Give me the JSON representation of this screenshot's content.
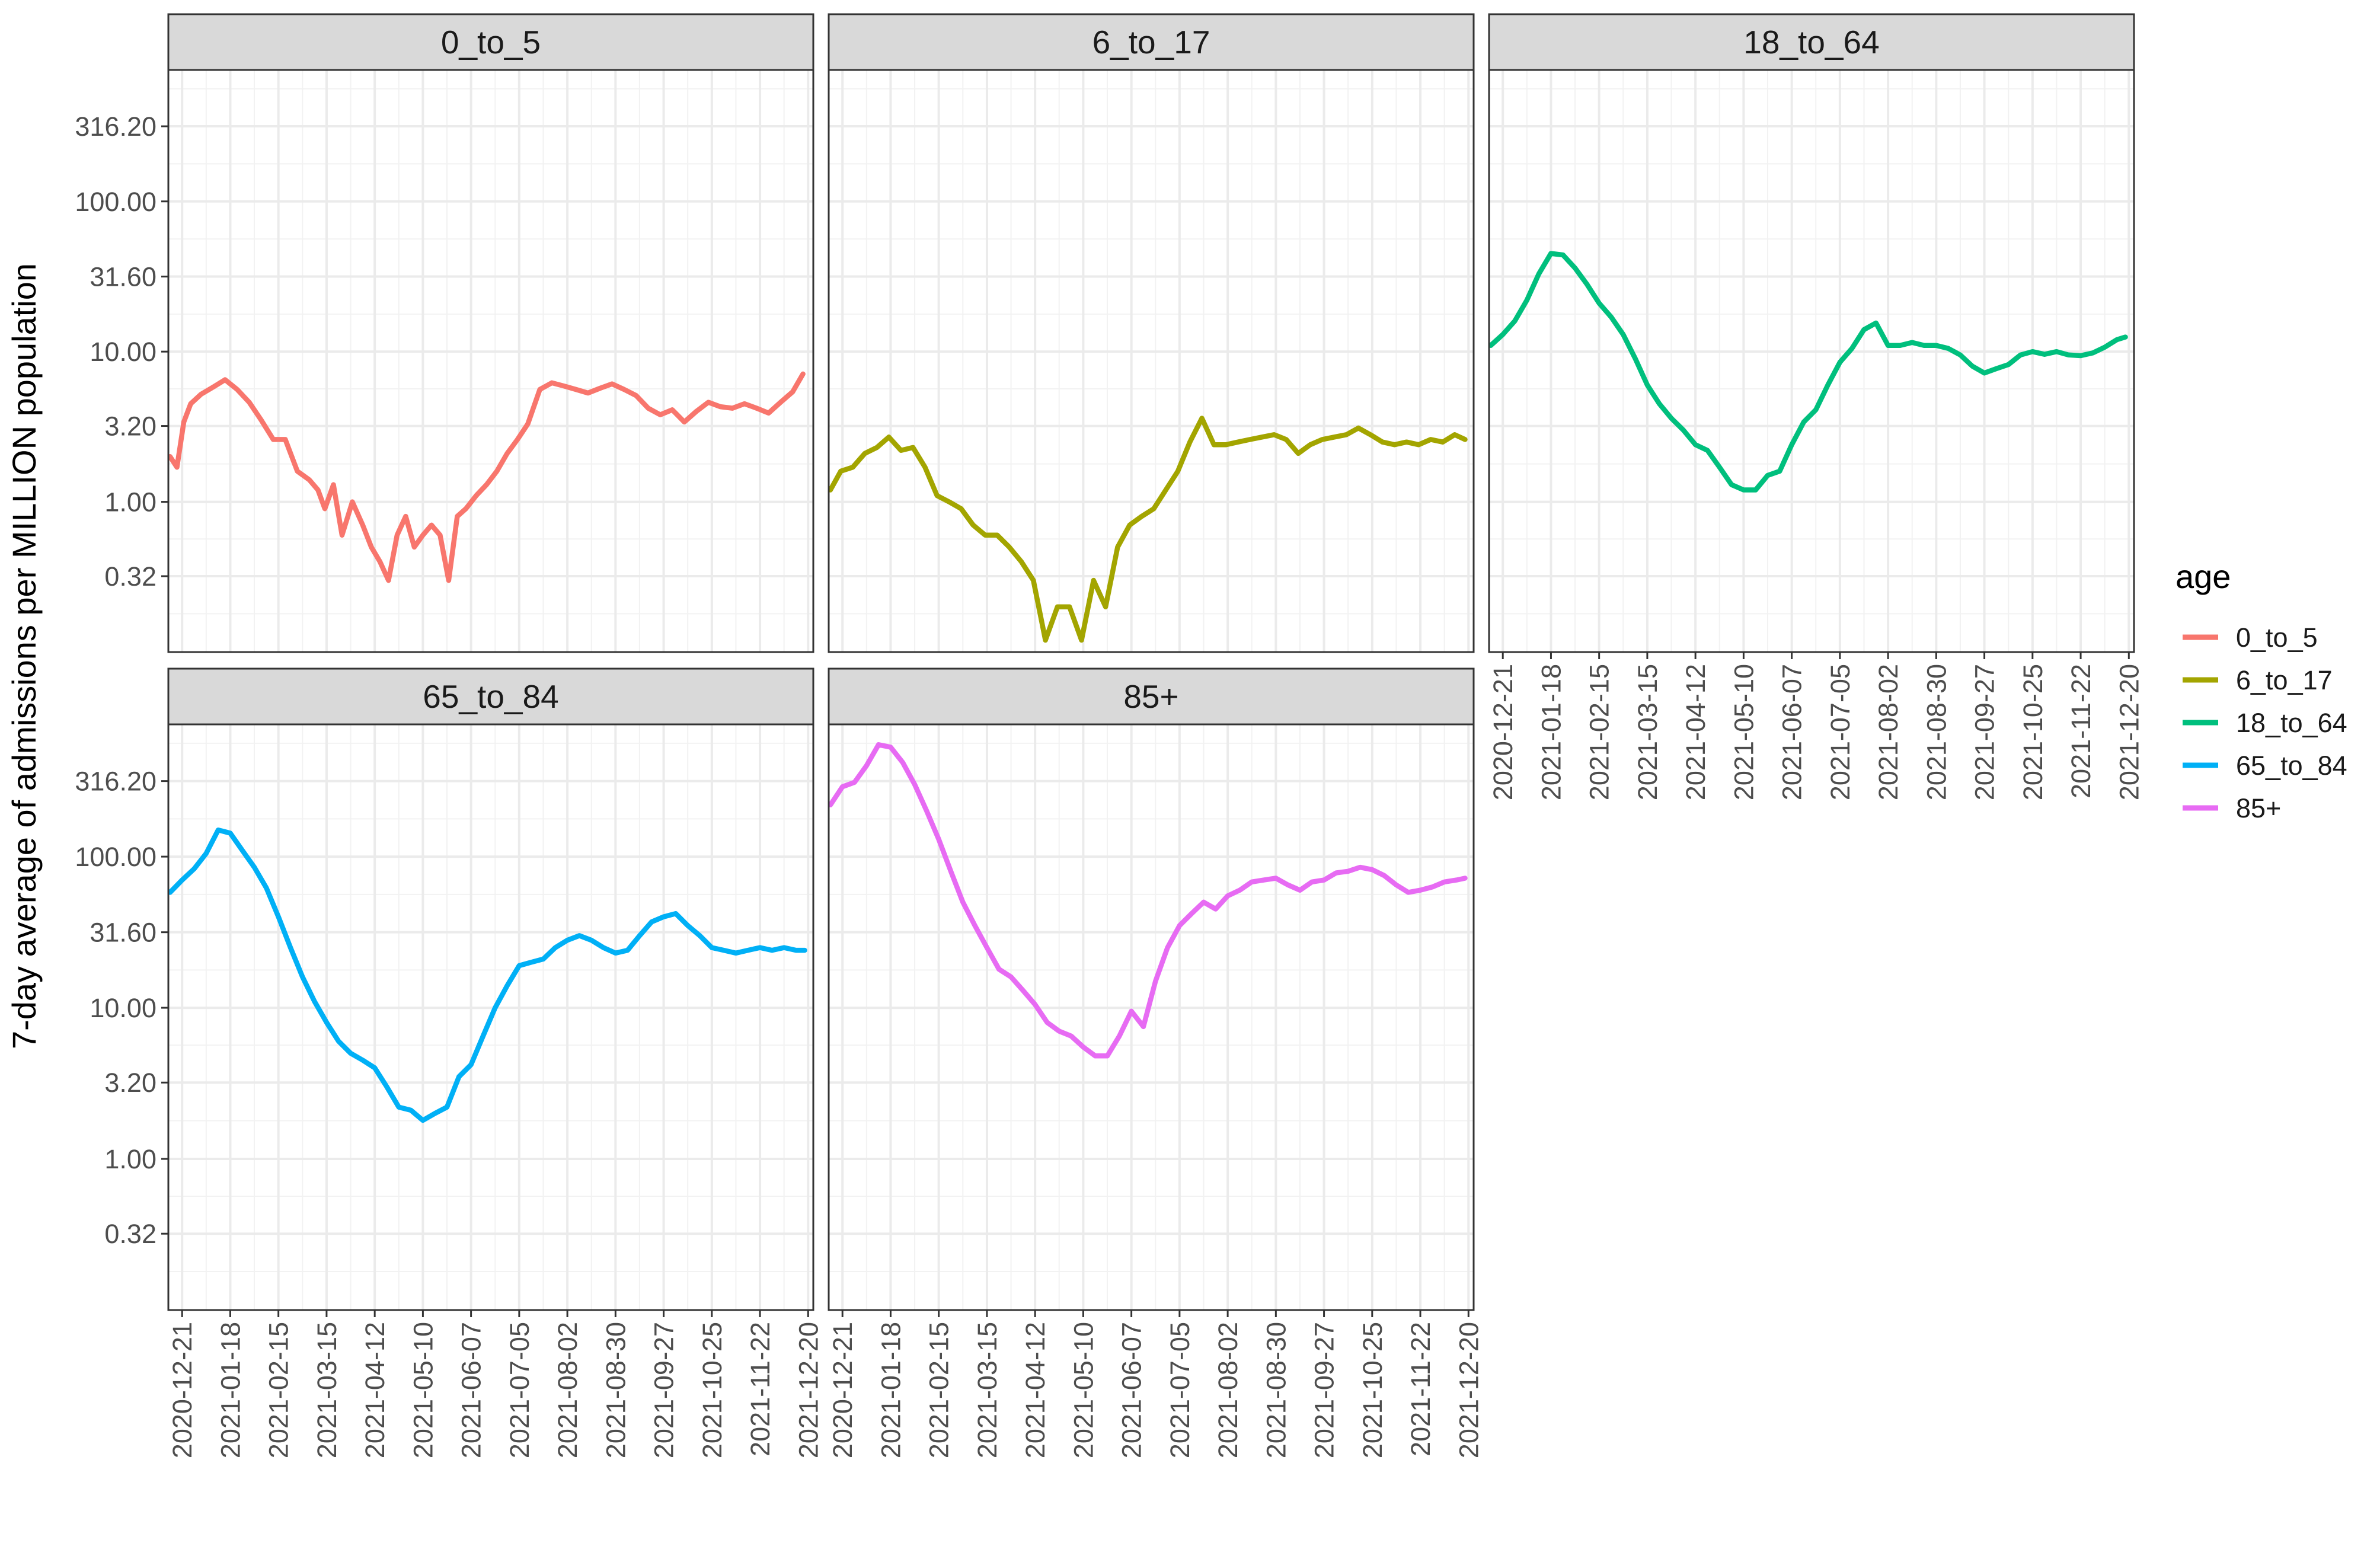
{
  "chart_data": {
    "type": "line",
    "facet_by": "age",
    "ylabel": "7-day average of admissions per MILLION population",
    "xlabel": "",
    "y_scale": "log10",
    "y_ticks": [
      "0.32",
      "1.00",
      "3.20",
      "10.00",
      "31.60",
      "100.00",
      "316.20"
    ],
    "y_tick_values": [
      0.32,
      1.0,
      3.2,
      10.0,
      31.6,
      100.0,
      316.2
    ],
    "ylim": [
      0.1,
      750
    ],
    "x_ticks": [
      "2020-12-21",
      "2021-01-18",
      "2021-02-15",
      "2021-03-15",
      "2021-04-12",
      "2021-05-10",
      "2021-06-07",
      "2021-07-05",
      "2021-08-02",
      "2021-08-30",
      "2021-09-27",
      "2021-10-25",
      "2021-11-22",
      "2021-12-20"
    ],
    "xlim": [
      "2020-12-13",
      "2021-12-23"
    ],
    "grid": true,
    "legend": {
      "title": "age",
      "placement": "right"
    },
    "series": [
      {
        "name": "0_to_5",
        "color": "#F8766D",
        "x": [
          "2020-12-14",
          "2020-12-18",
          "2020-12-22",
          "2020-12-26",
          "2021-01-01",
          "2021-01-08",
          "2021-01-15",
          "2021-01-22",
          "2021-01-29",
          "2021-02-05",
          "2021-02-12",
          "2021-02-19",
          "2021-02-26",
          "2021-03-05",
          "2021-03-10",
          "2021-03-14",
          "2021-03-19",
          "2021-03-24",
          "2021-03-30",
          "2021-04-05",
          "2021-04-10",
          "2021-04-15",
          "2021-04-20",
          "2021-04-25",
          "2021-04-30",
          "2021-05-05",
          "2021-05-10",
          "2021-05-15",
          "2021-05-20",
          "2021-05-25",
          "2021-05-30",
          "2021-06-04",
          "2021-06-10",
          "2021-06-16",
          "2021-06-22",
          "2021-06-28",
          "2021-07-04",
          "2021-07-10",
          "2021-07-17",
          "2021-07-24",
          "2021-07-31",
          "2021-08-07",
          "2021-08-14",
          "2021-08-21",
          "2021-08-28",
          "2021-09-04",
          "2021-09-11",
          "2021-09-18",
          "2021-09-25",
          "2021-10-02",
          "2021-10-09",
          "2021-10-16",
          "2021-10-23",
          "2021-10-30",
          "2021-11-06",
          "2021-11-13",
          "2021-11-20",
          "2021-11-27",
          "2021-12-04",
          "2021-12-11",
          "2021-12-17"
        ],
        "values": [
          2.0,
          1.7,
          3.4,
          4.5,
          5.2,
          5.8,
          6.5,
          5.6,
          4.6,
          3.5,
          2.6,
          2.6,
          1.6,
          1.4,
          1.2,
          0.9,
          1.3,
          0.6,
          1.0,
          0.7,
          0.5,
          0.4,
          0.3,
          0.6,
          0.8,
          0.5,
          0.6,
          0.7,
          0.6,
          0.3,
          0.8,
          0.9,
          1.1,
          1.3,
          1.6,
          2.1,
          2.6,
          3.3,
          5.6,
          6.2,
          5.9,
          5.6,
          5.3,
          5.7,
          6.1,
          5.6,
          5.1,
          4.2,
          3.8,
          4.1,
          3.4,
          4.0,
          4.6,
          4.3,
          4.2,
          4.5,
          4.2,
          3.9,
          4.6,
          5.4,
          7.1
        ]
      },
      {
        "name": "6_to_17",
        "color": "#A3A500",
        "x": [
          "2020-12-14",
          "2020-12-20",
          "2020-12-27",
          "2021-01-03",
          "2021-01-10",
          "2021-01-17",
          "2021-01-24",
          "2021-01-31",
          "2021-02-07",
          "2021-02-14",
          "2021-02-21",
          "2021-02-28",
          "2021-03-07",
          "2021-03-14",
          "2021-03-21",
          "2021-03-28",
          "2021-04-04",
          "2021-04-11",
          "2021-04-18",
          "2021-04-25",
          "2021-05-02",
          "2021-05-09",
          "2021-05-16",
          "2021-05-23",
          "2021-05-30",
          "2021-06-06",
          "2021-06-13",
          "2021-06-20",
          "2021-06-27",
          "2021-07-04",
          "2021-07-11",
          "2021-07-18",
          "2021-07-25",
          "2021-08-01",
          "2021-08-08",
          "2021-08-15",
          "2021-08-22",
          "2021-08-29",
          "2021-09-05",
          "2021-09-12",
          "2021-09-19",
          "2021-09-26",
          "2021-10-03",
          "2021-10-10",
          "2021-10-17",
          "2021-10-24",
          "2021-10-31",
          "2021-11-07",
          "2021-11-14",
          "2021-11-21",
          "2021-11-28",
          "2021-12-05",
          "2021-12-12",
          "2021-12-18"
        ],
        "values": [
          1.2,
          1.6,
          1.7,
          2.1,
          2.3,
          2.7,
          2.2,
          2.3,
          1.7,
          1.1,
          1.0,
          0.9,
          0.7,
          0.6,
          0.6,
          0.5,
          0.4,
          0.3,
          0.12,
          0.2,
          0.2,
          0.12,
          0.3,
          0.2,
          0.5,
          0.7,
          0.8,
          0.9,
          1.2,
          1.6,
          2.5,
          3.6,
          2.4,
          2.4,
          2.5,
          2.6,
          2.7,
          2.8,
          2.6,
          2.1,
          2.4,
          2.6,
          2.7,
          2.8,
          3.1,
          2.8,
          2.5,
          2.4,
          2.5,
          2.4,
          2.6,
          2.5,
          2.8,
          2.6
        ]
      },
      {
        "name": "18_to_64",
        "color": "#00BF7D",
        "x": [
          "2020-12-14",
          "2020-12-21",
          "2020-12-28",
          "2021-01-04",
          "2021-01-11",
          "2021-01-18",
          "2021-01-25",
          "2021-02-01",
          "2021-02-08",
          "2021-02-15",
          "2021-02-22",
          "2021-03-01",
          "2021-03-08",
          "2021-03-15",
          "2021-03-22",
          "2021-03-29",
          "2021-04-05",
          "2021-04-12",
          "2021-04-19",
          "2021-04-26",
          "2021-05-03",
          "2021-05-10",
          "2021-05-17",
          "2021-05-24",
          "2021-05-31",
          "2021-06-07",
          "2021-06-14",
          "2021-06-21",
          "2021-06-28",
          "2021-07-05",
          "2021-07-12",
          "2021-07-19",
          "2021-07-26",
          "2021-08-02",
          "2021-08-09",
          "2021-08-16",
          "2021-08-23",
          "2021-08-30",
          "2021-09-06",
          "2021-09-13",
          "2021-09-20",
          "2021-09-27",
          "2021-10-04",
          "2021-10-11",
          "2021-10-18",
          "2021-10-25",
          "2021-11-01",
          "2021-11-08",
          "2021-11-15",
          "2021-11-22",
          "2021-11-29",
          "2021-12-06",
          "2021-12-13",
          "2021-12-18"
        ],
        "values": [
          11.0,
          13.0,
          16.0,
          22.0,
          33.0,
          45.0,
          44.0,
          36.0,
          28.0,
          21.0,
          17.0,
          13.0,
          9.0,
          6.0,
          4.5,
          3.6,
          3.0,
          2.4,
          2.2,
          1.7,
          1.3,
          1.2,
          1.2,
          1.5,
          1.6,
          2.4,
          3.4,
          4.1,
          6.0,
          8.5,
          10.5,
          14.0,
          15.5,
          11.0,
          11.0,
          11.5,
          11.0,
          11.0,
          10.5,
          9.5,
          8.0,
          7.2,
          7.7,
          8.2,
          9.5,
          10.0,
          9.6,
          10.0,
          9.5,
          9.4,
          9.8,
          10.7,
          12.0,
          12.5
        ]
      },
      {
        "name": "65_to_84",
        "color": "#00B0F6",
        "x": [
          "2020-12-14",
          "2020-12-21",
          "2020-12-28",
          "2021-01-04",
          "2021-01-11",
          "2021-01-18",
          "2021-01-25",
          "2021-02-01",
          "2021-02-08",
          "2021-02-15",
          "2021-02-22",
          "2021-03-01",
          "2021-03-08",
          "2021-03-15",
          "2021-03-22",
          "2021-03-29",
          "2021-04-05",
          "2021-04-12",
          "2021-04-19",
          "2021-04-26",
          "2021-05-03",
          "2021-05-10",
          "2021-05-17",
          "2021-05-24",
          "2021-05-31",
          "2021-06-07",
          "2021-06-14",
          "2021-06-21",
          "2021-06-28",
          "2021-07-05",
          "2021-07-12",
          "2021-07-19",
          "2021-07-26",
          "2021-08-02",
          "2021-08-09",
          "2021-08-16",
          "2021-08-23",
          "2021-08-30",
          "2021-09-06",
          "2021-09-13",
          "2021-09-20",
          "2021-09-27",
          "2021-10-04",
          "2021-10-11",
          "2021-10-18",
          "2021-10-25",
          "2021-11-01",
          "2021-11-08",
          "2021-11-15",
          "2021-11-22",
          "2021-11-29",
          "2021-12-06",
          "2021-12-13",
          "2021-12-18"
        ],
        "values": [
          58.0,
          70.0,
          83.0,
          105.0,
          150.0,
          143.0,
          110.0,
          85.0,
          62.0,
          40.0,
          25.0,
          16.0,
          11.0,
          8.0,
          6.0,
          5.0,
          4.5,
          4.0,
          3.0,
          2.2,
          2.1,
          1.8,
          2.0,
          2.2,
          3.5,
          4.2,
          6.5,
          10.0,
          14.0,
          19.0,
          20.0,
          21.0,
          25.0,
          28.0,
          30.0,
          28.0,
          25.0,
          23.0,
          24.0,
          30.0,
          37.0,
          40.0,
          42.0,
          35.0,
          30.0,
          25.0,
          24.0,
          23.0,
          24.0,
          25.0,
          24.0,
          25.0,
          24.0,
          24.0
        ]
      },
      {
        "name": "85+",
        "color": "#E76BF3",
        "x": [
          "2020-12-14",
          "2020-12-21",
          "2020-12-28",
          "2021-01-04",
          "2021-01-11",
          "2021-01-18",
          "2021-01-25",
          "2021-02-01",
          "2021-02-08",
          "2021-02-15",
          "2021-02-22",
          "2021-03-01",
          "2021-03-08",
          "2021-03-15",
          "2021-03-22",
          "2021-03-29",
          "2021-04-05",
          "2021-04-12",
          "2021-04-19",
          "2021-04-26",
          "2021-05-03",
          "2021-05-10",
          "2021-05-17",
          "2021-05-24",
          "2021-05-31",
          "2021-06-07",
          "2021-06-14",
          "2021-06-21",
          "2021-06-28",
          "2021-07-05",
          "2021-07-12",
          "2021-07-19",
          "2021-07-26",
          "2021-08-02",
          "2021-08-09",
          "2021-08-16",
          "2021-08-23",
          "2021-08-30",
          "2021-09-06",
          "2021-09-13",
          "2021-09-20",
          "2021-09-27",
          "2021-10-04",
          "2021-10-11",
          "2021-10-18",
          "2021-10-25",
          "2021-11-01",
          "2021-11-08",
          "2021-11-15",
          "2021-11-22",
          "2021-11-29",
          "2021-12-06",
          "2021-12-13",
          "2021-12-18"
        ],
        "values": [
          220.0,
          290.0,
          310.0,
          400.0,
          550.0,
          530.0,
          420.0,
          300.0,
          200.0,
          130.0,
          80.0,
          50.0,
          35.0,
          25.0,
          18.0,
          16.0,
          13.0,
          10.5,
          8.0,
          7.0,
          6.5,
          5.5,
          4.8,
          4.8,
          6.5,
          9.5,
          7.5,
          15.0,
          25.0,
          35.0,
          42.0,
          50.0,
          45.0,
          55.0,
          60.0,
          68.0,
          70.0,
          72.0,
          65.0,
          60.0,
          68.0,
          70.0,
          78.0,
          80.0,
          85.0,
          82.0,
          75.0,
          65.0,
          58.0,
          60.0,
          63.0,
          68.0,
          70.0,
          72.0
        ]
      }
    ]
  }
}
